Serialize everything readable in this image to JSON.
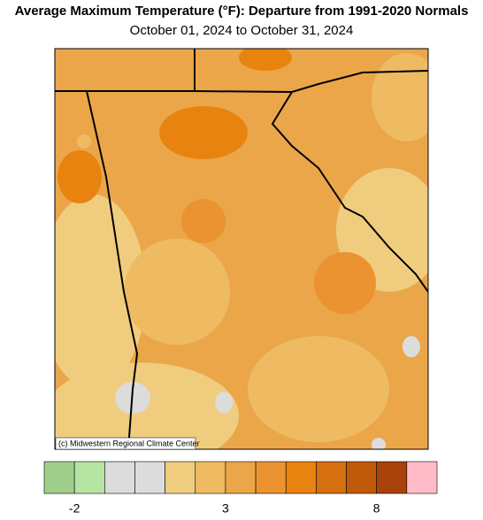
{
  "header": {
    "title": "Average Maximum Temperature (°F): Departure from 1991-2020 Normals",
    "subtitle": "October 01, 2024 to October 31, 2024"
  },
  "map": {
    "credit": "(c) Midwestern Regional Climate Center"
  },
  "legend": {
    "range": [
      -3,
      10
    ],
    "ticks": [
      -2,
      3,
      8
    ],
    "colors": [
      "#a0cf8c",
      "#b6e4a2",
      "#dcdcdc",
      "#dcdcdc",
      "#f0cd7e",
      "#eebb63",
      "#eba64a",
      "#ea9330",
      "#e8830f",
      "#d56f10",
      "#c05a0b",
      "#a8420a",
      "#ffbcc8"
    ]
  }
}
